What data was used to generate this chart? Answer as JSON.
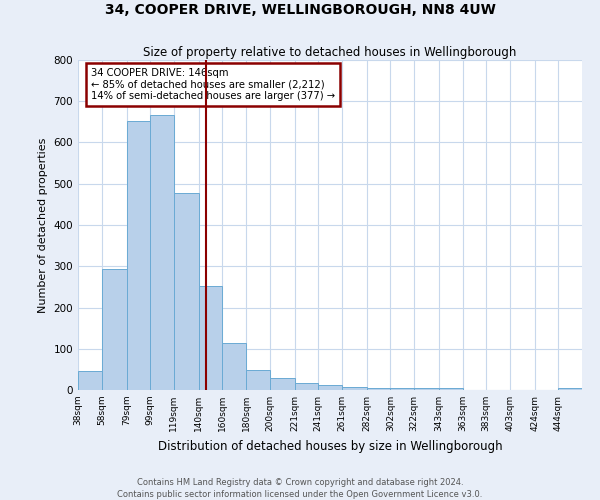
{
  "title": "34, COOPER DRIVE, WELLINGBOROUGH, NN8 4UW",
  "subtitle": "Size of property relative to detached houses in Wellingborough",
  "xlabel": "Distribution of detached houses by size in Wellingborough",
  "ylabel": "Number of detached properties",
  "bin_labels": [
    "38sqm",
    "58sqm",
    "79sqm",
    "99sqm",
    "119sqm",
    "140sqm",
    "160sqm",
    "180sqm",
    "200sqm",
    "221sqm",
    "241sqm",
    "261sqm",
    "282sqm",
    "302sqm",
    "322sqm",
    "343sqm",
    "363sqm",
    "383sqm",
    "403sqm",
    "424sqm",
    "444sqm"
  ],
  "bin_values": [
    38,
    58,
    79,
    99,
    119,
    140,
    160,
    180,
    200,
    221,
    241,
    261,
    282,
    302,
    322,
    343,
    363,
    383,
    403,
    424,
    444
  ],
  "bar_heights": [
    47,
    293,
    651,
    667,
    478,
    253,
    113,
    48,
    28,
    16,
    13,
    7,
    5,
    5,
    4,
    5,
    1,
    1,
    0,
    0,
    5
  ],
  "bar_color": "#b8d0ea",
  "bar_edge_color": "#6aaad4",
  "vline_x": 146,
  "vline_color": "#8b0000",
  "annotation_line1": "34 COOPER DRIVE: 146sqm",
  "annotation_line2": "← 85% of detached houses are smaller (2,212)",
  "annotation_line3": "14% of semi-detached houses are larger (377) →",
  "annotation_box_color": "#8b0000",
  "ylim": [
    0,
    800
  ],
  "yticks": [
    0,
    100,
    200,
    300,
    400,
    500,
    600,
    700,
    800
  ],
  "footnote1": "Contains HM Land Registry data © Crown copyright and database right 2024.",
  "footnote2": "Contains public sector information licensed under the Open Government Licence v3.0.",
  "bg_color": "#e8eef8",
  "plot_bg_color": "#ffffff",
  "grid_color": "#c8d8ec"
}
